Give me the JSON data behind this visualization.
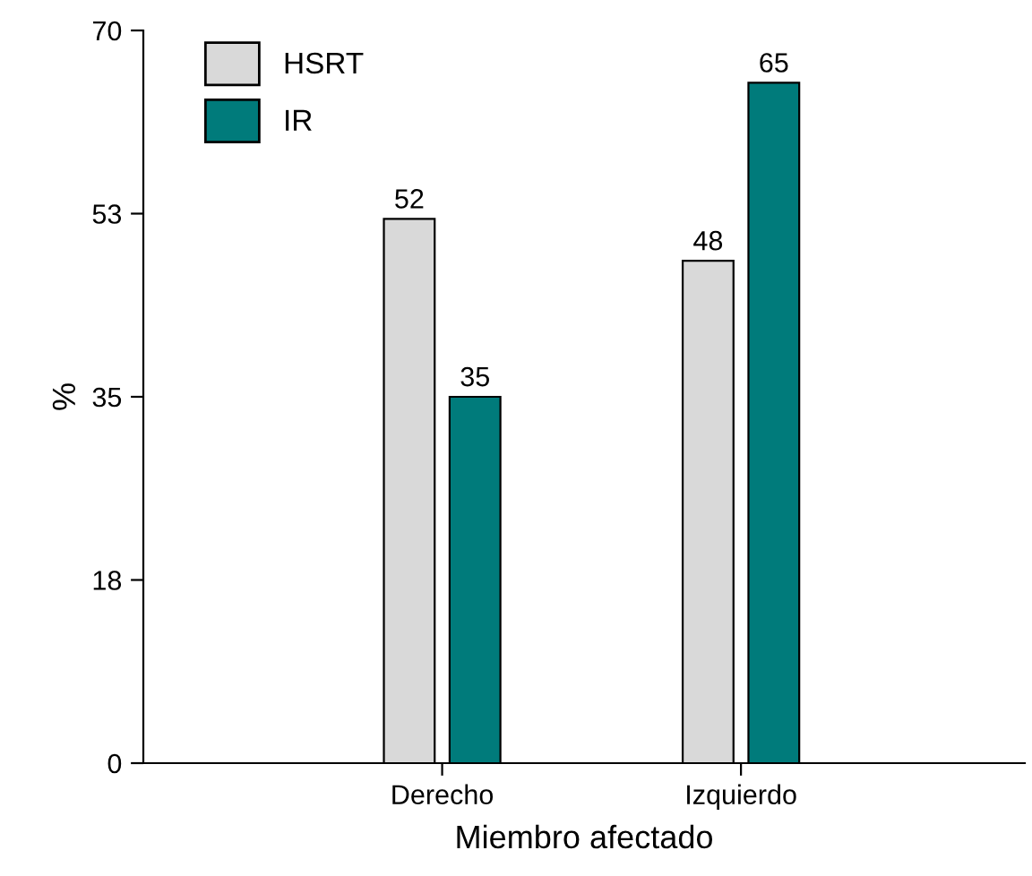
{
  "chart_data": {
    "type": "bar",
    "categories": [
      "Derecho",
      "Izquierdo"
    ],
    "series": [
      {
        "name": "HSRT",
        "color": "#d9d9d9",
        "values": [
          52,
          48
        ]
      },
      {
        "name": "IR",
        "color": "#007b7b",
        "values": [
          35,
          65
        ]
      }
    ],
    "xlabel": "Miembro afectado",
    "ylabel": "%",
    "ylim": [
      0,
      70
    ],
    "yticks": [
      0,
      {
        "value": 17.5,
        "label": "18"
      },
      35,
      {
        "value": 52.5,
        "label": "53"
      },
      70
    ],
    "data_labels": true,
    "legend": "top left",
    "grid": false
  }
}
